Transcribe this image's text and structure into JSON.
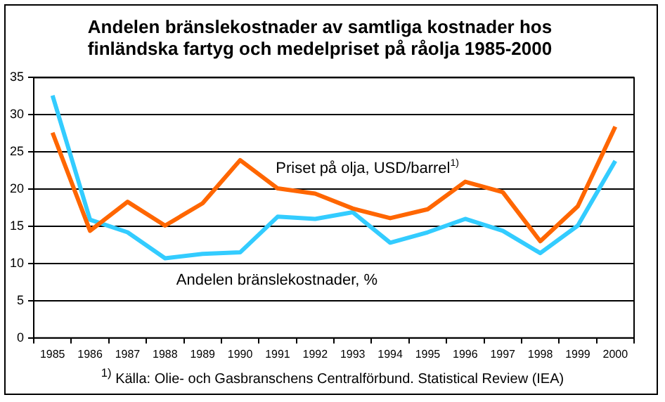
{
  "chart_data": {
    "type": "line",
    "title": "Andelen bränslekostnader av samtliga kostnader hos\nfinländska fartyg och medelpriset på råolja 1985-2000",
    "categories": [
      "1985",
      "1986",
      "1987",
      "1988",
      "1989",
      "1990",
      "1991",
      "1992",
      "1993",
      "1994",
      "1995",
      "1996",
      "1997",
      "1998",
      "1999",
      "2000"
    ],
    "series": [
      {
        "name": "Priset på olja, USD/barrel$^{1)}$",
        "color": "#ff6600",
        "values": [
          27.6,
          14.4,
          18.3,
          15.1,
          18.1,
          23.9,
          20.1,
          19.4,
          17.4,
          16.1,
          17.3,
          21.0,
          19.6,
          13.0,
          17.7,
          28.4
        ]
      },
      {
        "name": "Andelen bränslekostnader, %",
        "color": "#33ccff",
        "values": [
          32.6,
          15.9,
          14.2,
          10.7,
          11.3,
          11.5,
          16.3,
          16.0,
          16.9,
          12.8,
          14.2,
          16.0,
          14.4,
          11.4,
          15.1,
          23.8
        ]
      }
    ],
    "ylim": [
      0,
      35
    ],
    "yticks": [
      0,
      5,
      10,
      15,
      20,
      25,
      30,
      35
    ],
    "grid": "y",
    "legend": false,
    "marker": "none",
    "line_style": "solid",
    "annotations": [
      "$^{1)}$ Källa: Olie- och Gasbranschens Centralförbund. Statistical Review (IEA)"
    ]
  }
}
